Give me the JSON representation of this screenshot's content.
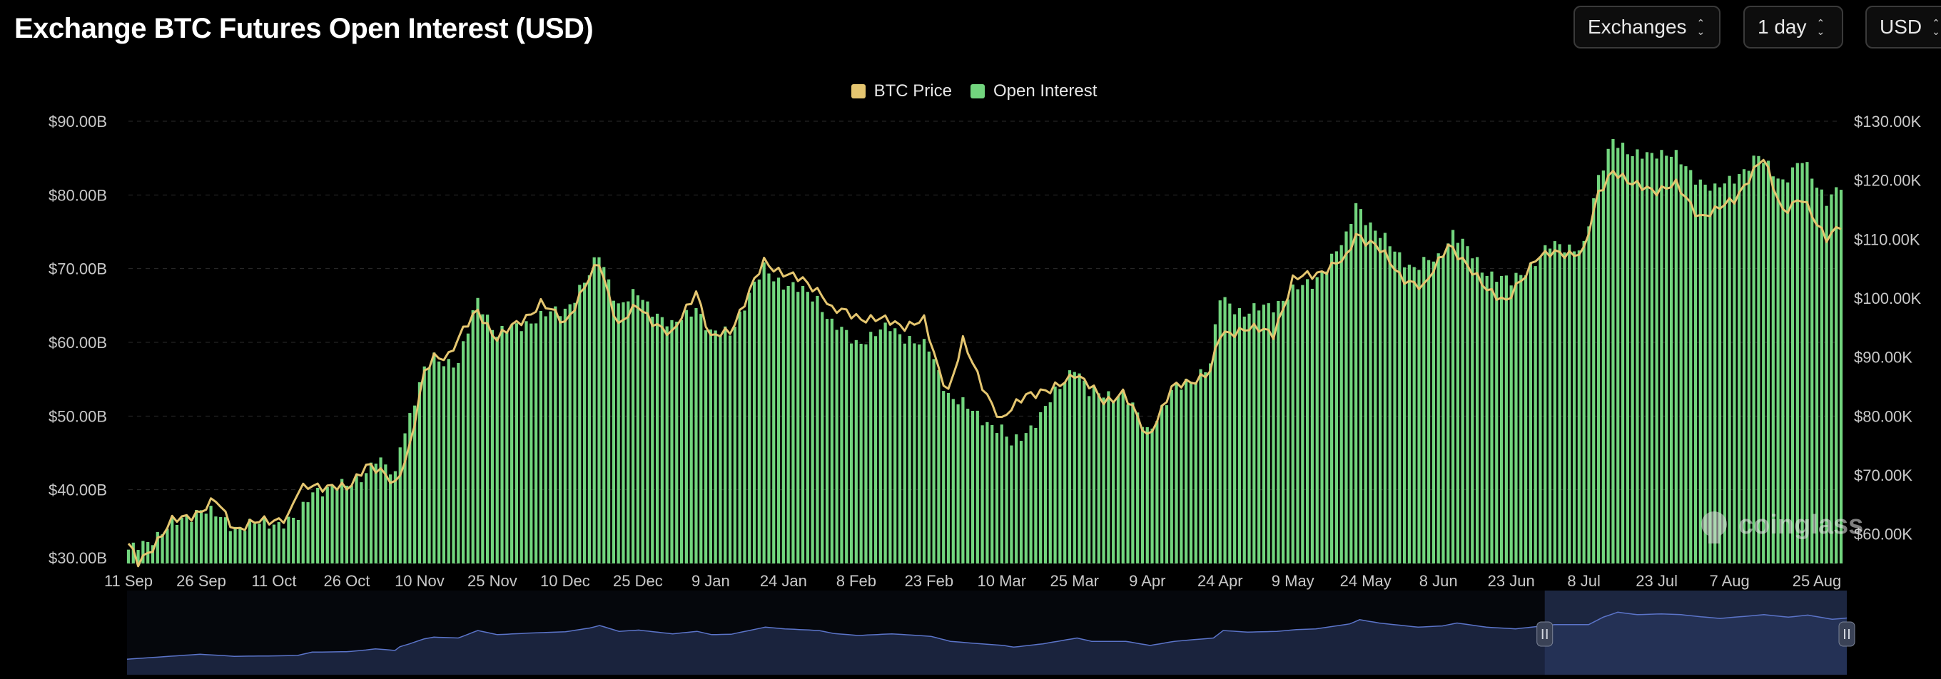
{
  "header": {
    "title": "Exchange BTC Futures Open Interest (USD)"
  },
  "controls": {
    "exchanges": "Exchanges",
    "interval": "1 day",
    "currency": "USD"
  },
  "watermark": "coinglass",
  "colors": {
    "background": "#000000",
    "open_interest": "#72d57e",
    "btc_price": "#e5c670",
    "grid": "#2b2b2b",
    "navigator": "#1c2640"
  },
  "chart_data": {
    "type": "bar",
    "legend": [
      "BTC Price",
      "Open Interest"
    ],
    "legend_position": "top-center",
    "x_tick_labels": [
      "11 Sep",
      "26 Sep",
      "11 Oct",
      "26 Oct",
      "10 Nov",
      "25 Nov",
      "10 Dec",
      "25 Dec",
      "9 Jan",
      "24 Jan",
      "8 Feb",
      "23 Feb",
      "10 Mar",
      "25 Mar",
      "9 Apr",
      "24 Apr",
      "9 May",
      "24 May",
      "8 Jun",
      "23 Jun",
      "8 Jul",
      "23 Jul",
      "7 Aug",
      "25 Aug"
    ],
    "y_left": {
      "ticks": [
        30,
        40,
        50,
        60,
        70,
        80,
        90
      ],
      "tick_labels": [
        "$30.00B",
        "$40.00B",
        "$50.00B",
        "$60.00B",
        "$70.00B",
        "$80.00B",
        "$90.00B"
      ],
      "range": [
        30,
        90
      ],
      "unit": "billion USD"
    },
    "y_right": {
      "ticks": [
        60000,
        70000,
        80000,
        90000,
        100000,
        110000,
        120000,
        130000
      ],
      "tick_labels": [
        "$60.00K",
        "$70.00K",
        "$80.00K",
        "$90.00K",
        "$100.00K",
        "$110.00K",
        "$120.00K",
        "$130.00K"
      ],
      "range": [
        55000,
        130000
      ],
      "unit": "USD"
    },
    "grid": true,
    "series": [
      {
        "name": "Open Interest",
        "type": "bar",
        "axis": "left",
        "keyframes": [
          [
            "11 Sep",
            31.5
          ],
          [
            "26 Sep",
            37.5
          ],
          [
            "3 Oct",
            35.0
          ],
          [
            "11 Oct",
            35.5
          ],
          [
            "16 Oct",
            36.0
          ],
          [
            "19 Oct",
            40.0
          ],
          [
            "26 Oct",
            40.5
          ],
          [
            "30 Oct",
            42.5
          ],
          [
            "1 Nov",
            44.0
          ],
          [
            "5 Nov",
            42.0
          ],
          [
            "6 Nov",
            46.5
          ],
          [
            "8 Nov",
            50.0
          ],
          [
            "11 Nov",
            56.0
          ],
          [
            "13 Nov",
            58.0
          ],
          [
            "18 Nov",
            57.0
          ],
          [
            "22 Nov",
            66.0
          ],
          [
            "26 Nov",
            61.0
          ],
          [
            "3 Dec",
            63.0
          ],
          [
            "10 Dec",
            64.5
          ],
          [
            "15 Dec",
            69.0
          ],
          [
            "17 Dec",
            72.0
          ],
          [
            "21 Dec",
            65.0
          ],
          [
            "25 Dec",
            66.5
          ],
          [
            "1 Jan",
            62.0
          ],
          [
            "6 Jan",
            65.0
          ],
          [
            "9 Jan",
            61.0
          ],
          [
            "13 Jan",
            61.5
          ],
          [
            "20 Jan",
            70.0
          ],
          [
            "24 Jan",
            68.0
          ],
          [
            "31 Jan",
            66.0
          ],
          [
            "3 Feb",
            62.5
          ],
          [
            "8 Feb",
            60.0
          ],
          [
            "15 Feb",
            62.0
          ],
          [
            "23 Feb",
            59.0
          ],
          [
            "27 Feb",
            53.0
          ],
          [
            "3 Mar",
            51.0
          ],
          [
            "10 Mar",
            48.0
          ],
          [
            "12 Mar",
            46.0
          ],
          [
            "18 Mar",
            50.0
          ],
          [
            "25 Mar",
            57.0
          ],
          [
            "28 Mar",
            53.0
          ],
          [
            "4 Apr",
            53.0
          ],
          [
            "9 Apr",
            48.0
          ],
          [
            "14 Apr",
            53.0
          ],
          [
            "22 Apr",
            57.0
          ],
          [
            "24 Apr",
            66.0
          ],
          [
            "29 Apr",
            64.0
          ],
          [
            "5 May",
            65.0
          ],
          [
            "9 May",
            67.0
          ],
          [
            "13 May",
            68.0
          ],
          [
            "20 May",
            74.0
          ],
          [
            "22 May",
            79.0
          ],
          [
            "26 May",
            75.0
          ],
          [
            "3 Jun",
            70.0
          ],
          [
            "8 Jun",
            71.5
          ],
          [
            "11 Jun",
            75.0
          ],
          [
            "17 Jun",
            70.0
          ],
          [
            "23 Jun",
            68.0
          ],
          [
            "1 Jul",
            73.0
          ],
          [
            "8 Jul",
            73.0
          ],
          [
            "11 Jul",
            82.0
          ],
          [
            "14 Jul",
            88.0
          ],
          [
            "18 Jul",
            85.0
          ],
          [
            "23 Jul",
            86.0
          ],
          [
            "27 Jul",
            85.0
          ],
          [
            "31 Jul",
            82.5
          ],
          [
            "4 Aug",
            80.5
          ],
          [
            "7 Aug",
            82.0
          ],
          [
            "13 Aug",
            85.0
          ],
          [
            "18 Aug",
            82.0
          ],
          [
            "22 Aug",
            84.5
          ],
          [
            "27 Aug",
            79.5
          ],
          [
            "30 Aug",
            81.0
          ]
        ]
      },
      {
        "name": "BTC Price",
        "type": "line",
        "axis": "right",
        "keyframes": [
          [
            "11 Sep",
            58000
          ],
          [
            "13 Sep",
            55000
          ],
          [
            "20 Sep",
            62000
          ],
          [
            "26 Sep",
            64000
          ],
          [
            "29 Sep",
            65500
          ],
          [
            "3 Oct",
            61000
          ],
          [
            "11 Oct",
            62500
          ],
          [
            "14 Oct",
            63000
          ],
          [
            "16 Oct",
            67000
          ],
          [
            "19 Oct",
            68500
          ],
          [
            "26 Oct",
            67500
          ],
          [
            "30 Oct",
            72000
          ],
          [
            "5 Nov",
            68500
          ],
          [
            "8 Nov",
            75000
          ],
          [
            "11 Nov",
            87000
          ],
          [
            "13 Nov",
            90000
          ],
          [
            "16 Nov",
            90500
          ],
          [
            "22 Nov",
            98000
          ],
          [
            "26 Nov",
            93000
          ],
          [
            "5 Dec",
            99000
          ],
          [
            "10 Dec",
            96000
          ],
          [
            "17 Dec",
            106000
          ],
          [
            "21 Dec",
            95500
          ],
          [
            "25 Dec",
            98500
          ],
          [
            "1 Jan",
            93500
          ],
          [
            "6 Jan",
            101500
          ],
          [
            "9 Jan",
            93000
          ],
          [
            "13 Jan",
            94500
          ],
          [
            "20 Jan",
            106000
          ],
          [
            "24 Jan",
            104500
          ],
          [
            "1 Feb",
            101000
          ],
          [
            "3 Feb",
            98000
          ],
          [
            "8 Feb",
            97000
          ],
          [
            "18 Feb",
            95500
          ],
          [
            "22 Feb",
            96000
          ],
          [
            "25 Feb",
            88000
          ],
          [
            "27 Feb",
            84500
          ],
          [
            "2 Mar",
            92500
          ],
          [
            "5 Mar",
            87000
          ],
          [
            "10 Mar",
            79000
          ],
          [
            "15 Mar",
            84000
          ],
          [
            "20 Mar",
            84000
          ],
          [
            "25 Mar",
            87500
          ],
          [
            "31 Mar",
            82500
          ],
          [
            "4 Apr",
            84000
          ],
          [
            "9 Apr",
            76500
          ],
          [
            "14 Apr",
            84500
          ],
          [
            "22 Apr",
            87500
          ],
          [
            "24 Apr",
            93500
          ],
          [
            "29 Apr",
            95000
          ],
          [
            "5 May",
            94000
          ],
          [
            "9 May",
            103000
          ],
          [
            "13 May",
            104000
          ],
          [
            "20 May",
            106500
          ],
          [
            "22 May",
            111000
          ],
          [
            "26 May",
            109000
          ],
          [
            "31 May",
            104000
          ],
          [
            "5 Jun",
            101500
          ],
          [
            "10 Jun",
            109500
          ],
          [
            "14 Jun",
            105000
          ],
          [
            "22 Jun",
            99000
          ],
          [
            "28 Jun",
            107000
          ],
          [
            "8 Jul",
            108000
          ],
          [
            "11 Jul",
            117500
          ],
          [
            "14 Jul",
            122000
          ],
          [
            "18 Jul",
            119000
          ],
          [
            "23 Jul",
            118500
          ],
          [
            "27 Jul",
            119000
          ],
          [
            "1 Aug",
            114000
          ],
          [
            "4 Aug",
            114500
          ],
          [
            "8 Aug",
            117000
          ],
          [
            "14 Aug",
            123500
          ],
          [
            "18 Aug",
            115000
          ],
          [
            "22 Aug",
            116500
          ],
          [
            "27 Aug",
            110500
          ],
          [
            "30 Aug",
            112000
          ]
        ]
      }
    ],
    "navigator": {
      "selected_range": [
        "29 Jun",
        "30 Aug"
      ]
    }
  }
}
